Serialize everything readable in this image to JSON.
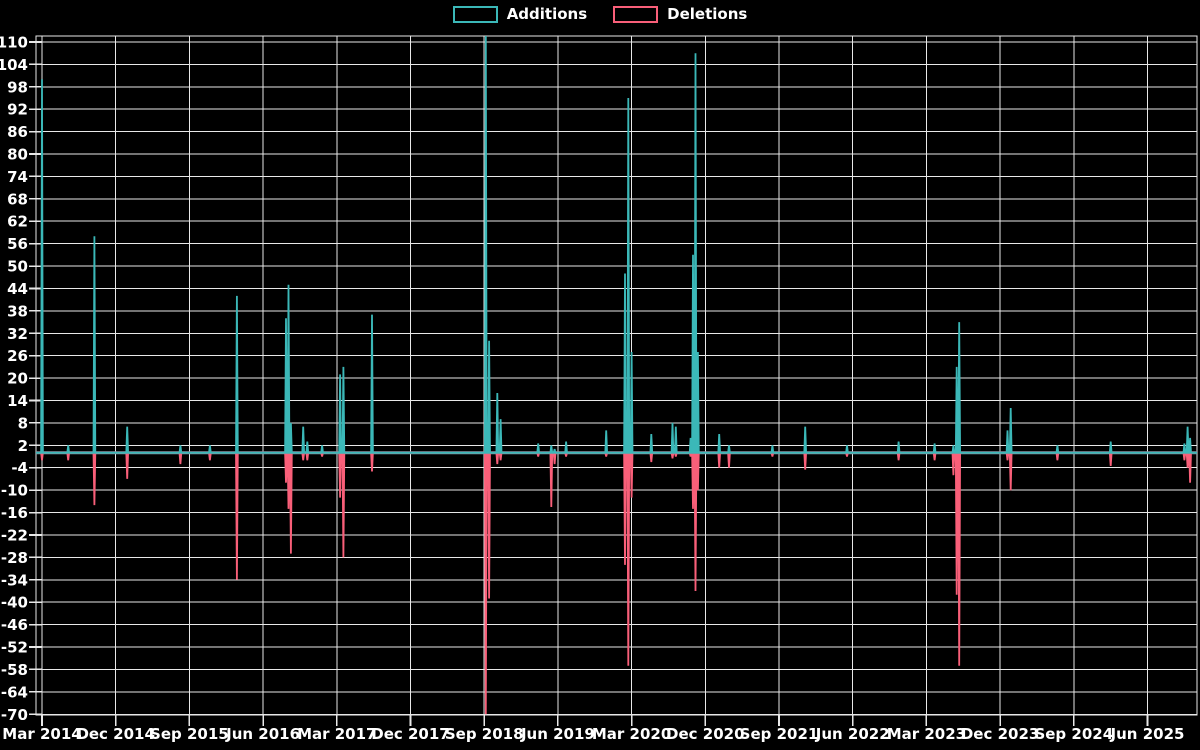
{
  "legend": {
    "items": [
      {
        "label": "Additions",
        "color": "#3bb8b8"
      },
      {
        "label": "Deletions",
        "color": "#f95f79"
      }
    ]
  },
  "chart_data": {
    "type": "line",
    "title": "",
    "x_unit": "months from Mar 2014 (fractional, weekly points)",
    "x": [
      0,
      3.2,
      6.4,
      10.4,
      16.9,
      20.5,
      23.8,
      29.8,
      30.1,
      30.4,
      31.9,
      32.4,
      34.2,
      36.4,
      36.8,
      40.3,
      54.2,
      54.6,
      55.6,
      56,
      60.6,
      62.2,
      62.6,
      64,
      68.9,
      71.2,
      71.6,
      72,
      74.4,
      77,
      77.4,
      79.2,
      79.5,
      79.8,
      80.1,
      82.7,
      83.9,
      89.2,
      93.2,
      98.3,
      104.6,
      109,
      111.3,
      111.7,
      112,
      117.9,
      118.3,
      124,
      130.5,
      139.5,
      139.9,
      140.2
    ],
    "series": [
      {
        "name": "Additions",
        "color": "#3bb8b8",
        "values": [
          100,
          2,
          58,
          7,
          2,
          2,
          42,
          36,
          45,
          8,
          7,
          3,
          2,
          21,
          23,
          37,
          112,
          30,
          16,
          9,
          2.5,
          2,
          1,
          3,
          6,
          48,
          95,
          27,
          5,
          8,
          7,
          4,
          53,
          107,
          27,
          5,
          2,
          2,
          7,
          2,
          3,
          2.5,
          2,
          23,
          35,
          6,
          12,
          2,
          3,
          2.5,
          7,
          4
        ]
      },
      {
        "name": "Deletions",
        "color": "#f95f79",
        "values": [
          -2,
          -2,
          -14,
          -7,
          -3,
          -2,
          -34,
          -8,
          -15,
          -27,
          -2,
          -2,
          -1,
          -12,
          -28,
          -5,
          -70,
          -39,
          -3,
          -2,
          -1,
          -14.5,
          -3,
          -1,
          -1,
          -30,
          -57,
          -12,
          -2.5,
          -1.5,
          -1,
          -1,
          -15,
          -37,
          -10,
          -4,
          -4,
          -1,
          -4.5,
          -1,
          -2,
          -2,
          -6,
          -38,
          -57,
          -2,
          -10,
          -2,
          -3.5,
          -2,
          -4,
          -8
        ]
      }
    ],
    "x_ticks": [
      "Mar 2014",
      "Dec 2014",
      "Sep 2015",
      "Jun 2016",
      "Mar 2017",
      "Dec 2017",
      "Sep 2018",
      "Jun 2019",
      "Mar 2020",
      "Dec 2020",
      "Sep 2021",
      "Jun 2022",
      "Mar 2023",
      "Dec 2023",
      "Sep 2024",
      "Jun 2025"
    ],
    "x_tick_interval_months": 9,
    "y_ticks": [
      110,
      104,
      98,
      92,
      86,
      80,
      74,
      68,
      62,
      56,
      50,
      44,
      38,
      32,
      26,
      20,
      14,
      8,
      2,
      -4,
      -10,
      -16,
      -22,
      -28,
      -34,
      -40,
      -46,
      -52,
      -58,
      -64,
      -70
    ],
    "ylim": [
      -70.2,
      111.7
    ],
    "grid": true,
    "legend_position": "top-center",
    "colors": {
      "background": "#000000",
      "grid": "#e8e8e8",
      "zero_line": "#7f9cab",
      "text": "#ffffff"
    }
  }
}
